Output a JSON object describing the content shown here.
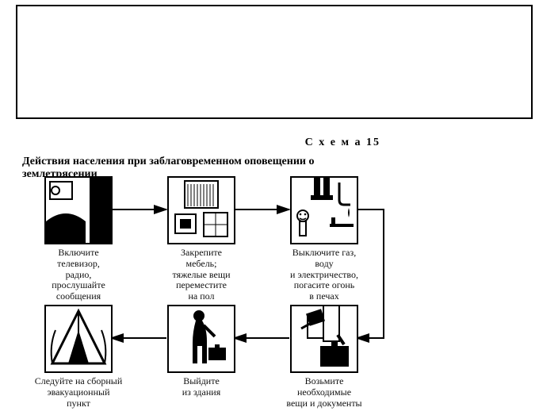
{
  "scheme_label": "С х е м а  15",
  "title": "Действия населения при заблаговременном оповещении о землетрясении",
  "cells": [
    {
      "caption": "Включите\nтелевизор,\nрадио,\nпрослушайте\nсообщения\nи рекомендации"
    },
    {
      "caption": "Закрепите\nмебель;\nтяжелые вещи\nпереместите\nна пол"
    },
    {
      "caption": "Выключите газ,\nводу\nи электричество,\nпогасите огонь\nв печах"
    },
    {
      "caption": "Следуйте на сборный\nэвакуационный\nпункт"
    },
    {
      "caption": "Выйдите\nиз здания"
    },
    {
      "caption": "Возьмите\nнеобходимые\nвещи  и документы"
    }
  ],
  "colors": {
    "stroke": "#000000",
    "fill_black": "#000000",
    "bg": "#ffffff"
  }
}
